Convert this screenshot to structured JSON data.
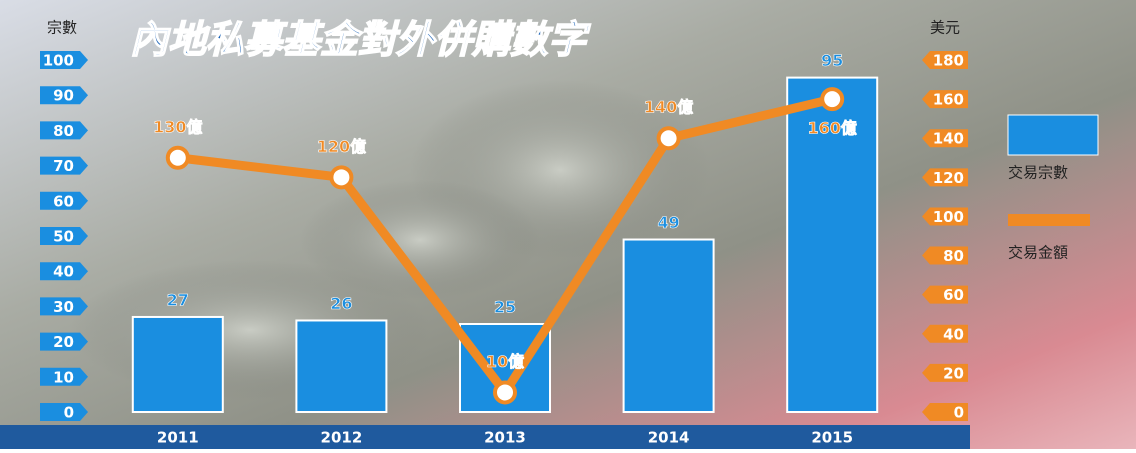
{
  "chart_data": {
    "type": "bar",
    "title": "內地私募基金對外併購數字",
    "y_label": "宗數",
    "y2_label": "美元",
    "categories": [
      "2011",
      "2012",
      "2013",
      "2014",
      "2015"
    ],
    "series": [
      {
        "name": "交易宗數",
        "type": "bar",
        "color": "#1a8ee0",
        "values": [
          27,
          26,
          25,
          49,
          95
        ]
      },
      {
        "name": "交易金額",
        "type": "line",
        "axis": "y2",
        "color": "#f08a24",
        "values": [
          130,
          120,
          10,
          140,
          160
        ],
        "value_labels": [
          "130億",
          "120億",
          "10億",
          "140億",
          "160億"
        ]
      }
    ],
    "ylim": [
      0,
      100
    ],
    "yticks": [
      0,
      10,
      20,
      30,
      40,
      50,
      60,
      70,
      80,
      90,
      100
    ],
    "y2lim": [
      0,
      180
    ],
    "y2ticks": [
      0,
      20,
      40,
      60,
      80,
      100,
      120,
      140,
      160,
      180
    ]
  }
}
